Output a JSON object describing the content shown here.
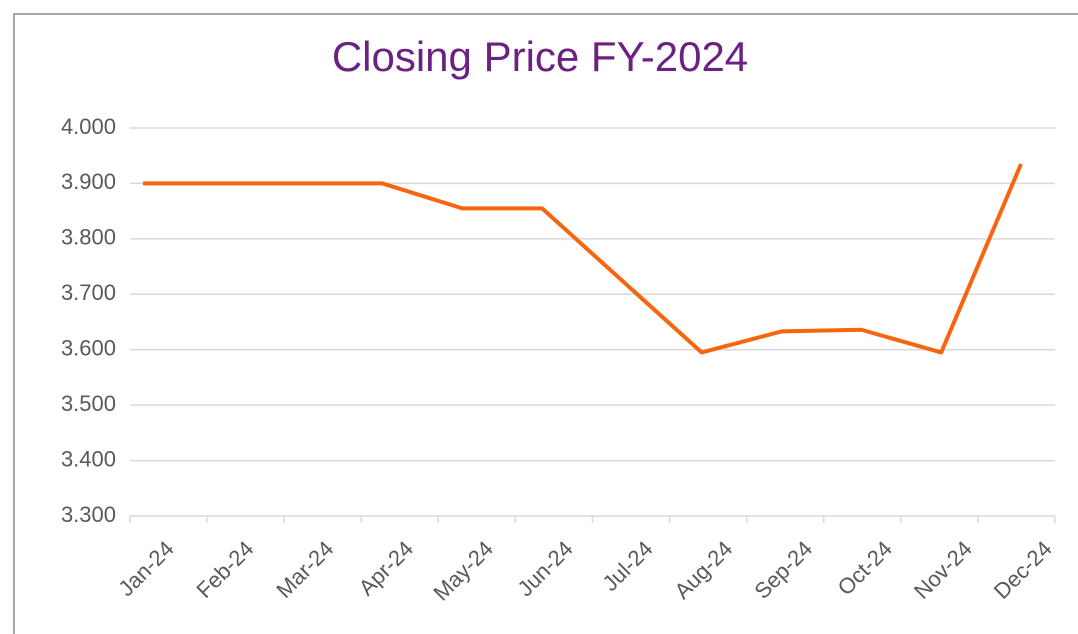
{
  "chart_data": {
    "type": "line",
    "title": "Closing Price FY-2024",
    "categories": [
      "Jan-24",
      "Feb-24",
      "Mar-24",
      "Apr-24",
      "May-24",
      "Jun-24",
      "Jul-24",
      "Aug-24",
      "Sep-24",
      "Oct-24",
      "Nov-24",
      "Dec-24"
    ],
    "series": [
      {
        "name": "Closing Price",
        "color": "#f7650f",
        "values": [
          3.9,
          3.9,
          3.9,
          3.9,
          3.855,
          3.855,
          3.725,
          3.595,
          3.633,
          3.636,
          3.595,
          3.935
        ]
      }
    ],
    "ylim": [
      3.3,
      4.0
    ],
    "yticks": [
      {
        "value": 3.3,
        "label": "3.300"
      },
      {
        "value": 3.4,
        "label": "3.400"
      },
      {
        "value": 3.5,
        "label": "3.500"
      },
      {
        "value": 3.6,
        "label": "3.600"
      },
      {
        "value": 3.7,
        "label": "3.700"
      },
      {
        "value": 3.8,
        "label": "3.800"
      },
      {
        "value": 3.9,
        "label": "3.900"
      },
      {
        "value": 4.0,
        "label": "4.000"
      }
    ],
    "grid": true
  }
}
